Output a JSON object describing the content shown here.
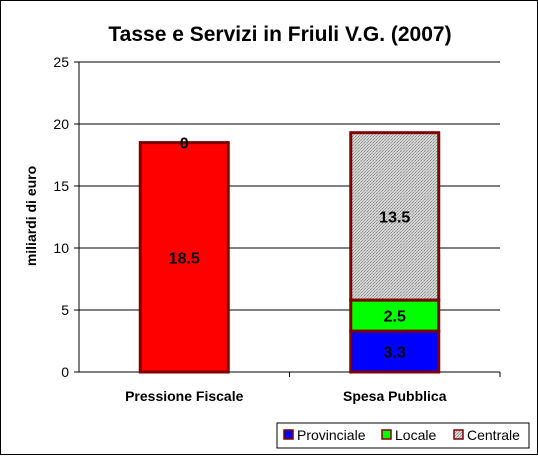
{
  "chart_data": {
    "type": "bar",
    "stacked": true,
    "title": "Tasse e Servizi in Friuli V.G. (2007)",
    "xlabel": "",
    "ylabel": "miliardi di euro",
    "ylim": [
      0,
      25
    ],
    "yticks": [
      0,
      5,
      10,
      15,
      20,
      25
    ],
    "grid": true,
    "legend_position": "bottom-right",
    "categories": [
      "Pressione Fiscale",
      "Spesa Pubblica"
    ],
    "series": [
      {
        "name": "Provinciale",
        "values": [
          18.5,
          3.3
        ],
        "color": "#0000ff",
        "data_labels": [
          "18.5",
          "3.3"
        ]
      },
      {
        "name": "Locale",
        "values": [
          0,
          2.5
        ],
        "color": "#00ff00",
        "data_labels": [
          "0",
          "2.5"
        ]
      },
      {
        "name": "Centrale",
        "values": [
          0,
          13.5
        ],
        "color": "#c0c0c0",
        "pattern": "dotted",
        "data_labels": [
          "",
          "13.5"
        ]
      }
    ],
    "bar_fill_overrides": [
      {
        "category": "Pressione Fiscale",
        "color": "#ff0000"
      }
    ],
    "bar_outline_color": "#800000"
  }
}
